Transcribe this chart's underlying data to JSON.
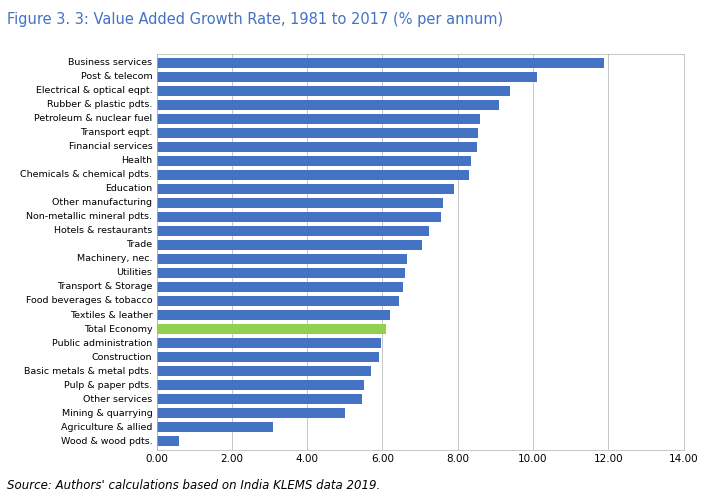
{
  "title": "Figure 3. 3: Value Added Growth Rate, 1981 to 2017 (% per annum)",
  "source": "Source: Authors' calculations based on India KLEMS data 2019.",
  "categories": [
    "Business services",
    "Post & telecom",
    "Electrical & optical eqpt.",
    "Rubber & plastic pdts.",
    "Petroleum & nuclear fuel",
    "Transport eqpt.",
    "Financial services",
    "Health",
    "Chemicals & chemical pdts.",
    "Education",
    "Other manufacturing",
    "Non-metallic mineral pdts.",
    "Hotels & restaurants",
    "Trade",
    "Machinery, nec.",
    "Utilities",
    "Transport & Storage",
    "Food beverages & tobacco",
    "Textiles & leather",
    "Total Economy",
    "Public administration",
    "Construction",
    "Basic metals & metal pdts.",
    "Pulp & paper pdts.",
    "Other services",
    "Mining & quarrying",
    "Agriculture & allied",
    "Wood & wood pdts."
  ],
  "values": [
    11.9,
    10.1,
    9.4,
    9.1,
    8.6,
    8.55,
    8.5,
    8.35,
    8.3,
    7.9,
    7.6,
    7.55,
    7.25,
    7.05,
    6.65,
    6.6,
    6.55,
    6.45,
    6.2,
    6.1,
    5.95,
    5.9,
    5.7,
    5.5,
    5.45,
    5.0,
    3.1,
    0.6
  ],
  "bar_colors": [
    "#4472c4",
    "#4472c4",
    "#4472c4",
    "#4472c4",
    "#4472c4",
    "#4472c4",
    "#4472c4",
    "#4472c4",
    "#4472c4",
    "#4472c4",
    "#4472c4",
    "#4472c4",
    "#4472c4",
    "#4472c4",
    "#4472c4",
    "#4472c4",
    "#4472c4",
    "#4472c4",
    "#4472c4",
    "#92d050",
    "#4472c4",
    "#4472c4",
    "#4472c4",
    "#4472c4",
    "#4472c4",
    "#4472c4",
    "#4472c4",
    "#4472c4"
  ],
  "xlim": [
    0,
    14
  ],
  "xticks": [
    0.0,
    2.0,
    4.0,
    6.0,
    8.0,
    10.0,
    12.0,
    14.0
  ],
  "xtick_labels": [
    "0.00",
    "2.00",
    "4.00",
    "6.00",
    "8.00",
    "10.00",
    "12.00",
    "14.00"
  ],
  "title_color": "#4472c4",
  "title_fontsize": 10.5,
  "source_fontsize": 8.5,
  "background_color": "#ffffff",
  "grid_color": "#b0b0b0",
  "bar_height": 0.72
}
